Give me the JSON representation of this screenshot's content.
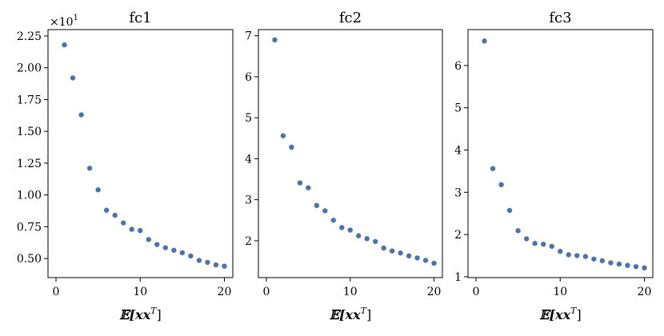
{
  "chart_data": [
    {
      "type": "scatter",
      "title": "fc1",
      "xlabel": "𝔼[xx",
      "xlabel_sup": "T",
      "xlabel_end": "]",
      "y_multiplier": "×10",
      "y_multiplier_exp": "1",
      "xlim": [
        -0.95,
        21.0
      ],
      "ylim": [
        0.35,
        2.3
      ],
      "xticks": [
        0,
        10,
        20
      ],
      "xtick_labels": [
        "0",
        "10",
        "20"
      ],
      "yticks": [
        0.5,
        0.75,
        1.0,
        1.25,
        1.5,
        1.75,
        2.0,
        2.25
      ],
      "ytick_labels": [
        "0.50",
        "0.75",
        "1.00",
        "1.25",
        "1.50",
        "1.75",
        "2.00",
        "2.25"
      ],
      "x": [
        1,
        2,
        3,
        4,
        5,
        6,
        7,
        8,
        9,
        10,
        11,
        12,
        13,
        14,
        15,
        16,
        17,
        18,
        19,
        20
      ],
      "y": [
        2.18,
        1.92,
        1.63,
        1.21,
        1.04,
        0.88,
        0.84,
        0.78,
        0.73,
        0.72,
        0.65,
        0.61,
        0.585,
        0.565,
        0.545,
        0.52,
        0.485,
        0.47,
        0.45,
        0.44
      ]
    },
    {
      "type": "scatter",
      "title": "fc2",
      "xlabel": "𝔼[xx",
      "xlabel_sup": "T",
      "xlabel_end": "]",
      "xlim": [
        -0.95,
        21.0
      ],
      "ylim": [
        1.1,
        7.15
      ],
      "xticks": [
        0,
        10,
        20
      ],
      "xtick_labels": [
        "0",
        "10",
        "20"
      ],
      "yticks": [
        2,
        3,
        4,
        5,
        6,
        7
      ],
      "ytick_labels": [
        "2",
        "3",
        "4",
        "5",
        "6",
        "7"
      ],
      "x": [
        1,
        2,
        3,
        4,
        5,
        6,
        7,
        8,
        9,
        10,
        11,
        12,
        13,
        14,
        15,
        16,
        17,
        18,
        19,
        20
      ],
      "y": [
        6.9,
        4.56,
        4.28,
        3.41,
        3.29,
        2.86,
        2.73,
        2.5,
        2.32,
        2.26,
        2.12,
        2.05,
        1.98,
        1.82,
        1.75,
        1.7,
        1.63,
        1.58,
        1.52,
        1.45
      ]
    },
    {
      "type": "scatter",
      "title": "fc3",
      "xlabel": "𝔼[xx",
      "xlabel_sup": "T",
      "xlabel_end": "]",
      "xlim": [
        -0.95,
        21.0
      ],
      "ylim": [
        0.98,
        6.85
      ],
      "xticks": [
        0,
        10,
        20
      ],
      "xtick_labels": [
        "0",
        "10",
        "20"
      ],
      "yticks": [
        1,
        2,
        3,
        4,
        5,
        6
      ],
      "ytick_labels": [
        "1",
        "2",
        "3",
        "4",
        "5",
        "6"
      ],
      "x": [
        1,
        2,
        3,
        4,
        5,
        6,
        7,
        8,
        9,
        10,
        11,
        12,
        13,
        14,
        15,
        16,
        17,
        18,
        19,
        20
      ],
      "y": [
        6.58,
        3.56,
        3.18,
        2.57,
        2.09,
        1.9,
        1.79,
        1.77,
        1.72,
        1.6,
        1.52,
        1.5,
        1.48,
        1.42,
        1.38,
        1.33,
        1.3,
        1.27,
        1.24,
        1.21
      ]
    }
  ]
}
